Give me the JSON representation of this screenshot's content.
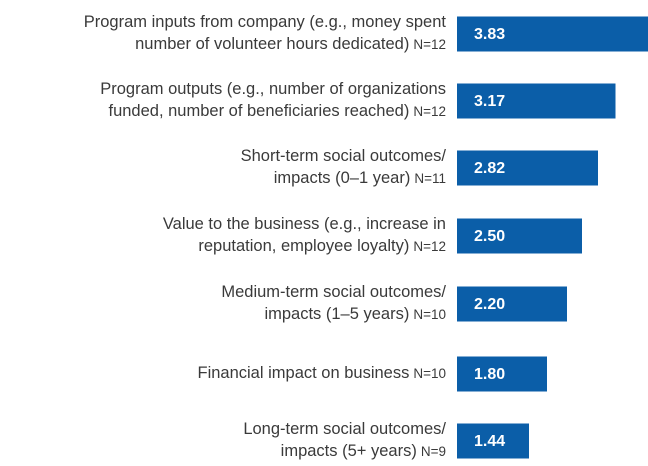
{
  "chart_data": {
    "type": "barh",
    "categories": [
      [
        "Program inputs from company (e.g., money spent",
        "number of volunteer hours dedicated)"
      ],
      [
        "Program outputs (e.g., number of organizations",
        "funded, number of beneficiaries reached)"
      ],
      [
        "Short-term social outcomes/",
        "impacts (0–1 year)"
      ],
      [
        "Value to the business (e.g., increase in",
        "reputation, employee loyalty)"
      ],
      [
        "Medium-term social outcomes/",
        "impacts (1–5 years)"
      ],
      [
        "Financial impact on business"
      ],
      [
        "Long-term social outcomes/",
        "impacts (5+ years)"
      ]
    ],
    "sample_sizes": [
      "N=12",
      "N=12",
      "N=11",
      "N=12",
      "N=10",
      "N=10",
      "N=9"
    ],
    "values": [
      3.83,
      3.17,
      2.82,
      2.5,
      2.2,
      1.8,
      1.44
    ],
    "value_labels": [
      "3.83",
      "3.17",
      "2.82",
      "2.50",
      "2.20",
      "1.80",
      "1.44"
    ],
    "color": "#0b5ea8",
    "xlim": [
      0,
      4
    ]
  }
}
